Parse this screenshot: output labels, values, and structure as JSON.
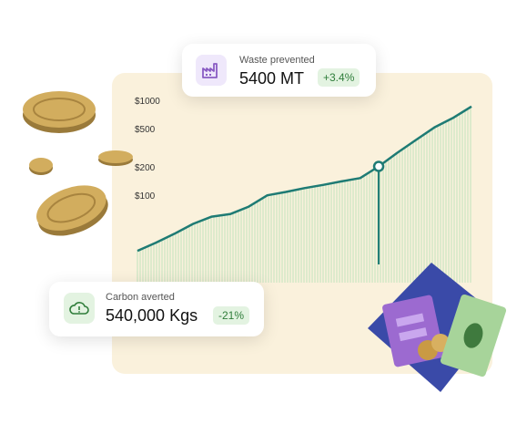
{
  "waste_card": {
    "label": "Waste prevented",
    "value": "5400 MT",
    "badge": "+3.4%",
    "icon": "factory-icon",
    "accent": "#8a5cc4",
    "icon_bg": "#efe8fb",
    "badge_bg": "#e3f3e1",
    "badge_color": "#2f7d3a"
  },
  "carbon_card": {
    "label": "Carbon averted",
    "value": "540,000 Kgs",
    "badge": "-21%",
    "icon": "cloud-alert-icon",
    "accent": "#2f7d3a",
    "icon_bg": "#e3f3e1",
    "badge_bg": "#e3f3e1",
    "badge_color": "#2f7d3a"
  },
  "chart_data": {
    "type": "area",
    "ytick_labels": [
      "$1000",
      "$500",
      "$200",
      "$100"
    ],
    "ytick_values": [
      1000,
      500,
      200,
      100
    ],
    "scale": "log",
    "ylim": [
      20,
      1000
    ],
    "x": [
      0,
      1,
      2,
      3,
      4,
      5,
      6,
      7,
      8,
      9,
      10,
      11,
      12,
      13,
      14,
      15,
      16,
      17,
      18
    ],
    "series": [
      {
        "values": [
          27,
          33,
          41,
          52,
          62,
          66,
          79,
          104,
          113,
          124,
          134,
          146,
          158,
          210,
          292,
          398,
          540,
          680,
          900
        ]
      }
    ],
    "highlight_index": 13,
    "line_color": "#1e7b74",
    "fill_color": "#8fd6a4",
    "grid": false
  }
}
